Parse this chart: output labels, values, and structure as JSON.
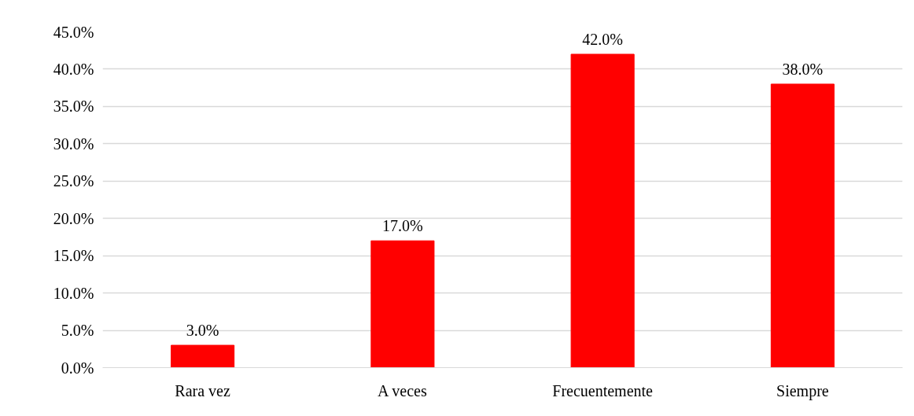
{
  "chart_data": {
    "type": "bar",
    "categories": [
      "Rara vez",
      "A veces",
      "Frecuentemente",
      "Siempre"
    ],
    "values": [
      3,
      17,
      42,
      38
    ],
    "value_labels": [
      "3.0%",
      "17.0%",
      "42.0%",
      "38.0%"
    ],
    "color": "#ff0000",
    "ylim": [
      0,
      45
    ],
    "yticks": [
      {
        "value": 0,
        "label": "0.0%"
      },
      {
        "value": 5,
        "label": "5.0%"
      },
      {
        "value": 10,
        "label": "10.0%"
      },
      {
        "value": 15,
        "label": "15.0%"
      },
      {
        "value": 20,
        "label": "20.0%"
      },
      {
        "value": 25,
        "label": "25.0%"
      },
      {
        "value": 30,
        "label": "30.0%"
      },
      {
        "value": 35,
        "label": "35.0%"
      },
      {
        "value": 40,
        "label": "40.0%"
      },
      {
        "value": 45,
        "label": "45.0%"
      }
    ],
    "grid": "y"
  }
}
